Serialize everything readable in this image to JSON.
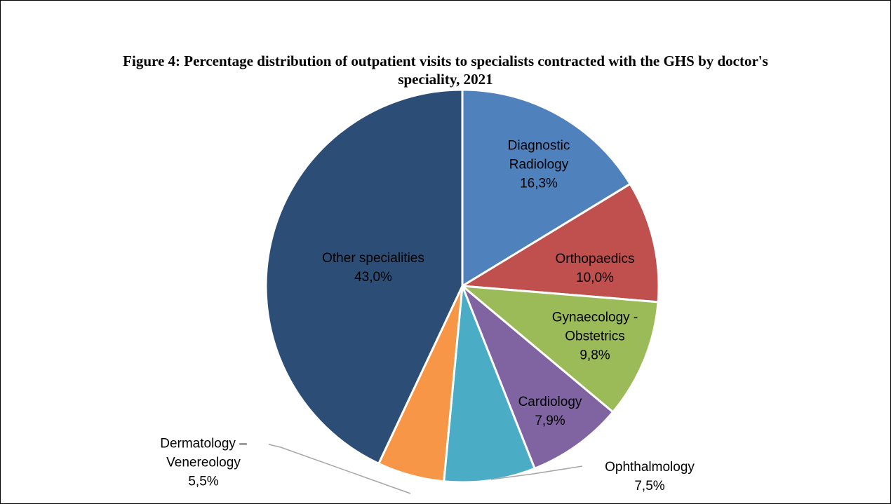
{
  "chart_data": {
    "type": "pie",
    "title": "Figure 4: Percentage distribution of outpatient visits to specialists contracted with the GHS by doctor's speciality, 2021",
    "categories": [
      "Diagnostic Radiology",
      "Orthopaedics",
      "Gynaecology - Obstetrics",
      "Cardiology",
      "Ophthalmology",
      "Dermatology – Venereology",
      "Other specialities"
    ],
    "values": [
      16.3,
      10.0,
      9.8,
      7.9,
      7.5,
      5.5,
      43.0
    ],
    "value_labels": [
      "16,3%",
      "10,0%",
      "9,8%",
      "7,9%",
      "7,5%",
      "5,5%",
      "43,0%"
    ],
    "colors": [
      "#4f81bd",
      "#c0504d",
      "#9bbb59",
      "#8064a2",
      "#4bacc6",
      "#f79646",
      "#2c4d75"
    ]
  }
}
